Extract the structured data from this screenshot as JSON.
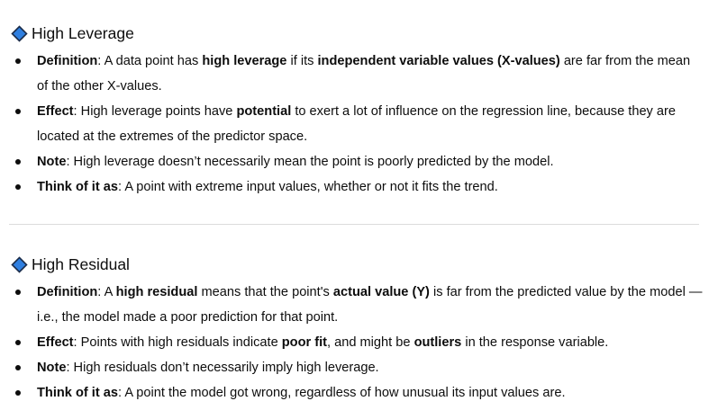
{
  "sections": [
    {
      "title": "High Leverage",
      "icon": "blue-diamond-icon",
      "bullets": [
        {
          "label": "Definition",
          "parts": [
            {
              "t": "A data point has ",
              "b": false
            },
            {
              "t": "high leverage",
              "b": true
            },
            {
              "t": " if its ",
              "b": false
            },
            {
              "t": "independent variable values (X-values)",
              "b": true
            },
            {
              "t": " are far from the mean of the other X-values.",
              "b": false
            }
          ]
        },
        {
          "label": "Effect",
          "parts": [
            {
              "t": "High leverage points have ",
              "b": false
            },
            {
              "t": "potential",
              "b": true
            },
            {
              "t": " to exert a lot of influence on the regression line, because they are located at the extremes of the predictor space.",
              "b": false
            }
          ]
        },
        {
          "label": "Note",
          "parts": [
            {
              "t": "High leverage doesn’t necessarily mean the point is poorly predicted by the model.",
              "b": false
            }
          ]
        },
        {
          "label": "Think of it as",
          "parts": [
            {
              "t": "A point with extreme input values, whether or not it fits the trend.",
              "b": false
            }
          ]
        }
      ]
    },
    {
      "title": "High Residual",
      "icon": "blue-diamond-icon",
      "bullets": [
        {
          "label": "Definition",
          "parts": [
            {
              "t": "A ",
              "b": false
            },
            {
              "t": "high residual",
              "b": true
            },
            {
              "t": " means that the point's ",
              "b": false
            },
            {
              "t": "actual value (Y)",
              "b": true
            },
            {
              "t": " is far from the predicted value by the model — i.e., the model made a poor prediction for that point.",
              "b": false
            }
          ]
        },
        {
          "label": "Effect",
          "parts": [
            {
              "t": "Points with high residuals indicate ",
              "b": false
            },
            {
              "t": "poor fit",
              "b": true
            },
            {
              "t": ", and might be ",
              "b": false
            },
            {
              "t": "outliers",
              "b": true
            },
            {
              "t": " in the response variable.",
              "b": false
            }
          ]
        },
        {
          "label": "Note",
          "parts": [
            {
              "t": "High residuals don’t necessarily imply high leverage.",
              "b": false
            }
          ]
        },
        {
          "label": "Think of it as",
          "parts": [
            {
              "t": "A point the model got wrong, regardless of how unusual its input values are.",
              "b": false
            }
          ]
        }
      ]
    }
  ],
  "colors": {
    "diamond_fill": "#2f7fe0",
    "diamond_stroke": "#1a2c4a",
    "text": "#0d0d0d",
    "divider": "#dcdcdc"
  }
}
